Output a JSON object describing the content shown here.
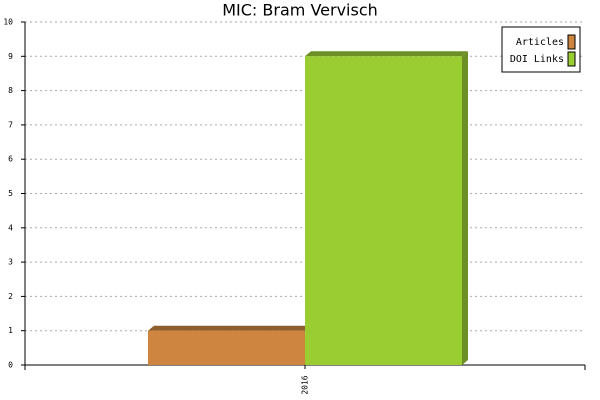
{
  "chart_data": {
    "type": "bar",
    "title": "MIC: Bram Vervisch",
    "categories": [
      "2016"
    ],
    "series": [
      {
        "name": "Articles",
        "color": "#cd853f",
        "values": [
          1
        ]
      },
      {
        "name": "DOI Links",
        "color": "#9acd32",
        "values": [
          9
        ]
      }
    ],
    "ylim": [
      0,
      10
    ],
    "yticks": [
      0,
      1,
      2,
      3,
      4,
      5,
      6,
      7,
      8,
      9,
      10
    ],
    "grid": true,
    "legend": "top-right"
  }
}
